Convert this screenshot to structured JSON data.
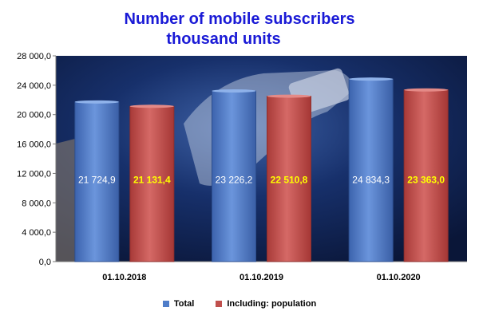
{
  "chart_data": {
    "type": "bar",
    "title": "Number of mobile subscribers",
    "subtitle": "thousand units",
    "categories": [
      "01.10.2018",
      "01.10.2019",
      "01.10.2020"
    ],
    "series": [
      {
        "name": "Total",
        "values": [
          21724.9,
          23226.2,
          24834.3
        ],
        "labels": [
          "21 724,9",
          "23 226,2",
          "24 834,3"
        ],
        "color": "#4f7dc9"
      },
      {
        "name": "Including: population",
        "values": [
          21131.4,
          22510.8,
          23363.0
        ],
        "labels": [
          "21 131,4",
          "22 510,8",
          "23 363,0"
        ],
        "color": "#c0504d"
      }
    ],
    "ylim": [
      0,
      28000
    ],
    "yticks": [
      0,
      4000,
      8000,
      12000,
      16000,
      20000,
      24000,
      28000
    ],
    "ytick_labels": [
      "0,0",
      "4 000,0",
      "8 000,0",
      "12 000,0",
      "16 000,0",
      "20 000,0",
      "24 000,0",
      "28 000,0"
    ],
    "legend_position": "bottom",
    "grid": false
  }
}
